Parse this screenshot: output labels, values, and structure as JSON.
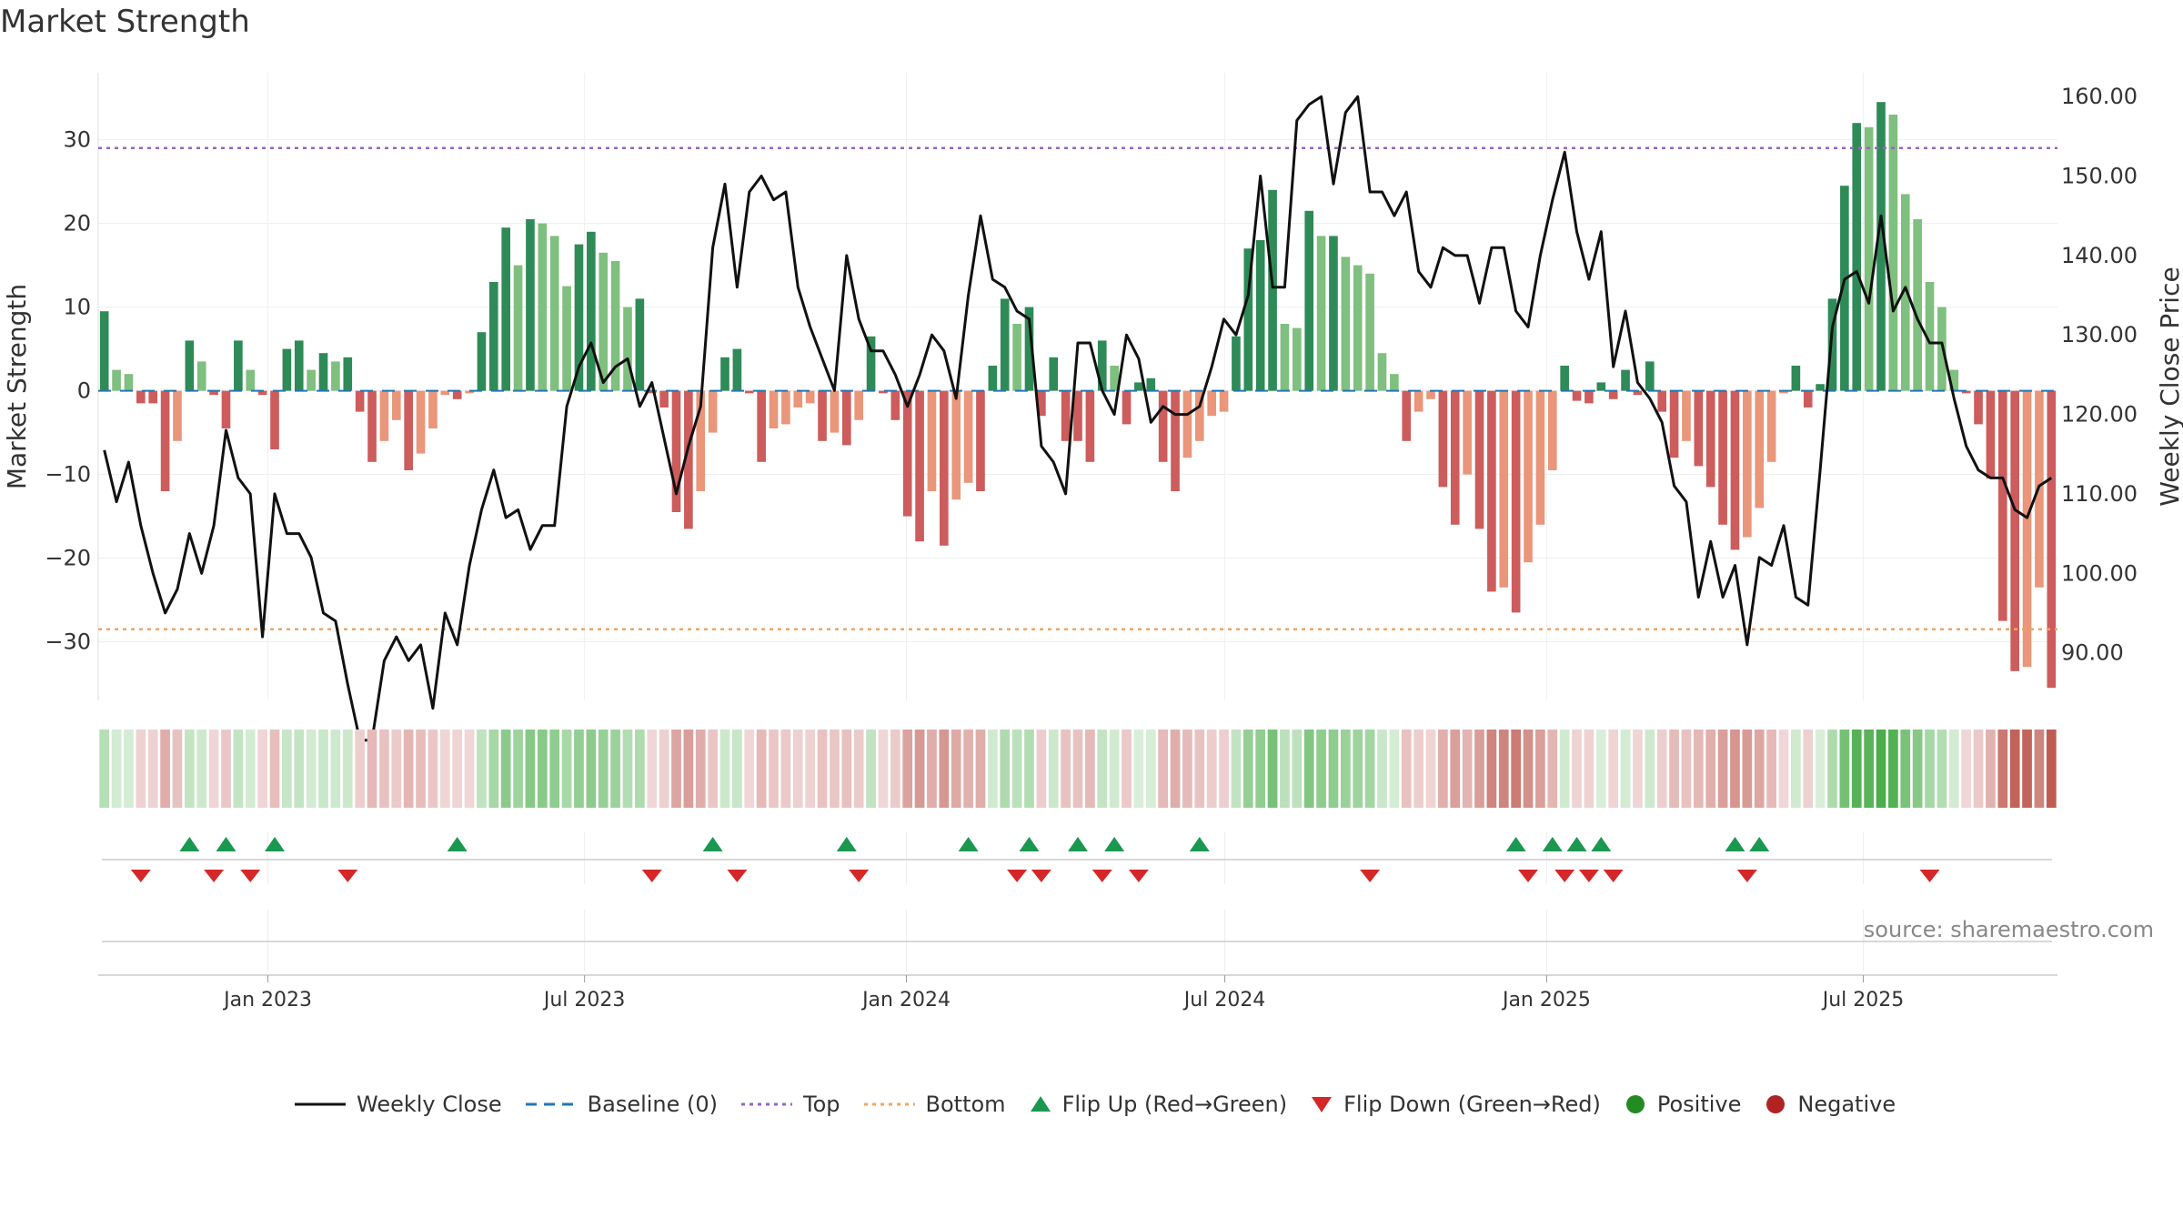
{
  "title": "Market Strength",
  "source": "source: sharemaestro.com",
  "colors": {
    "green_dark": "#2e8b57",
    "green_light": "#7fbf7f",
    "red_dark": "#cd5c5c",
    "red_light": "#e9967a",
    "price_line": "#111111",
    "baseline": "#1f77b4",
    "top_line": "#9467bd",
    "bottom_line": "#f4a460",
    "flip_up": "#1a9850",
    "flip_down": "#d62728",
    "positive": "#228b22",
    "negative": "#b22222"
  },
  "legend": [
    {
      "label": "Weekly Close",
      "kind": "line",
      "color": "#111111"
    },
    {
      "label": "Baseline (0)",
      "kind": "dash",
      "color": "#1f77b4"
    },
    {
      "label": "Top",
      "kind": "dot",
      "color": "#9467bd"
    },
    {
      "label": "Bottom",
      "kind": "dot",
      "color": "#f4a460"
    },
    {
      "label": "Flip Up (Red→Green)",
      "kind": "tri-up",
      "color": "#1a9850"
    },
    {
      "label": "Flip Down (Green→Red)",
      "kind": "tri-down",
      "color": "#d62728"
    },
    {
      "label": "Positive",
      "kind": "circle",
      "color": "#228b22"
    },
    {
      "label": "Negative",
      "kind": "circle",
      "color": "#b22222"
    }
  ],
  "chart_data": {
    "type": "bar",
    "x_start": "2022-09-26",
    "x_end": "2025-10-20",
    "x_ticks": [
      {
        "date": "2023-01-01",
        "label": "Jan 2023"
      },
      {
        "date": "2023-07-01",
        "label": "Jul 2023"
      },
      {
        "date": "2024-01-01",
        "label": "Jan 2024"
      },
      {
        "date": "2024-07-01",
        "label": "Jul 2024"
      },
      {
        "date": "2025-01-01",
        "label": "Jan 2025"
      },
      {
        "date": "2025-07-01",
        "label": "Jul 2025"
      }
    ],
    "ylabel": "Market Strength",
    "y2label": "Weekly Close Price",
    "ylim": [
      -37,
      38
    ],
    "y_ticks": [
      30,
      20,
      10,
      0,
      -10,
      -20,
      -30
    ],
    "y_tick_labels": [
      "30",
      "20",
      "10",
      "0",
      "−10",
      "−20",
      "−30"
    ],
    "y2lim": [
      84,
      163
    ],
    "y2_ticks": [
      160,
      150,
      140,
      130,
      120,
      110,
      100,
      90
    ],
    "y2_tick_labels": [
      "160.00",
      "150.00",
      "140.00",
      "130.00",
      "120.00",
      "110.00",
      "100.00",
      "90.00"
    ],
    "top_threshold": 29,
    "bottom_threshold": -28.5,
    "strength": [
      9.5,
      2.5,
      2,
      -1.5,
      -1.5,
      -12,
      -6,
      6,
      3.5,
      -0.5,
      -4.5,
      6,
      2.5,
      -0.5,
      -7,
      5,
      6,
      2.5,
      4.5,
      3.5,
      4,
      -2.5,
      -8.5,
      -6,
      -3.5,
      -9.5,
      -7.5,
      -4.5,
      -0.5,
      -1,
      -0.3,
      7,
      13,
      19.5,
      15,
      20.5,
      20,
      18.5,
      12.5,
      17.5,
      19,
      16.5,
      15.5,
      10,
      11,
      -0.3,
      -2,
      -14.5,
      -16.5,
      -12,
      -5,
      4,
      5,
      -0.3,
      -8.5,
      -4.5,
      -4,
      -2,
      -1.5,
      -6,
      -5,
      -6.5,
      -3.5,
      6.5,
      -0.3,
      -3.5,
      -15,
      -18,
      -12,
      -18.5,
      -13,
      -11,
      -12,
      3,
      11,
      8,
      10,
      -3,
      4,
      -6,
      -6,
      -8.5,
      6,
      3,
      -4,
      1,
      1.5,
      -8.5,
      -12,
      -8,
      -6,
      -3,
      -2.5,
      6.5,
      17,
      18,
      24,
      8,
      7.5,
      21.5,
      18.5,
      18.5,
      16,
      15,
      14,
      4.5,
      2,
      -6,
      -2.5,
      -1,
      -11.5,
      -16,
      -10,
      -16.5,
      -24,
      -23.5,
      -26.5,
      -20.5,
      -16,
      -9.5,
      3,
      -1.2,
      -1.5,
      1,
      -1,
      2.5,
      -0.5,
      3.5,
      -2.5,
      -8,
      -6,
      -9,
      -11.5,
      -16,
      -19,
      -17.5,
      -14,
      -8.5,
      -0.3,
      3,
      -2,
      0.8,
      11,
      24.5,
      32,
      31.5,
      34.5,
      33,
      23.5,
      20.5,
      13,
      10,
      2.5,
      -0.3,
      -4,
      -10.5,
      -27.5,
      -33.5,
      -33,
      -23.5,
      -35.5
    ],
    "price": [
      115.5,
      109,
      114,
      106,
      100,
      95,
      98,
      105,
      100,
      106,
      118,
      112,
      110,
      92,
      110,
      105,
      105,
      102,
      95,
      94,
      86,
      79,
      79,
      89,
      92,
      89,
      91,
      83,
      95,
      91,
      101,
      108,
      113,
      107,
      108,
      103,
      106,
      106,
      121,
      126,
      129,
      124,
      126,
      127,
      121,
      124,
      117,
      110,
      116,
      121,
      141,
      149,
      136,
      148,
      150,
      147,
      148,
      136,
      131,
      127,
      123,
      140,
      132,
      128,
      128,
      125,
      121,
      125,
      130,
      128,
      122,
      135,
      145,
      137,
      136,
      133,
      132,
      116,
      114,
      110,
      129,
      129,
      123,
      120,
      130,
      127,
      119,
      121,
      120,
      120,
      121,
      126,
      132,
      130,
      135,
      150,
      136,
      136,
      157,
      159,
      160,
      149,
      158,
      160,
      148,
      148,
      145,
      148,
      138,
      136,
      141,
      140,
      140,
      134,
      141,
      141,
      133,
      131,
      140,
      147,
      153,
      143,
      137,
      143,
      126,
      133,
      124,
      122,
      119,
      111,
      109,
      97,
      104,
      97,
      101,
      91,
      102,
      101,
      106,
      97,
      96,
      113,
      131,
      137,
      138,
      134,
      145,
      133,
      136,
      132,
      129,
      129,
      122,
      116,
      113,
      112,
      112,
      108,
      107,
      111,
      112
    ],
    "flip_up_index": [
      7,
      10,
      14,
      29,
      50,
      61,
      71,
      76,
      80,
      83,
      90,
      116,
      119,
      121,
      123,
      134,
      136
    ],
    "flip_down_index": [
      3,
      9,
      12,
      20,
      45,
      52,
      62,
      75,
      77,
      82,
      85,
      104,
      117,
      120,
      122,
      124,
      135,
      150
    ]
  }
}
